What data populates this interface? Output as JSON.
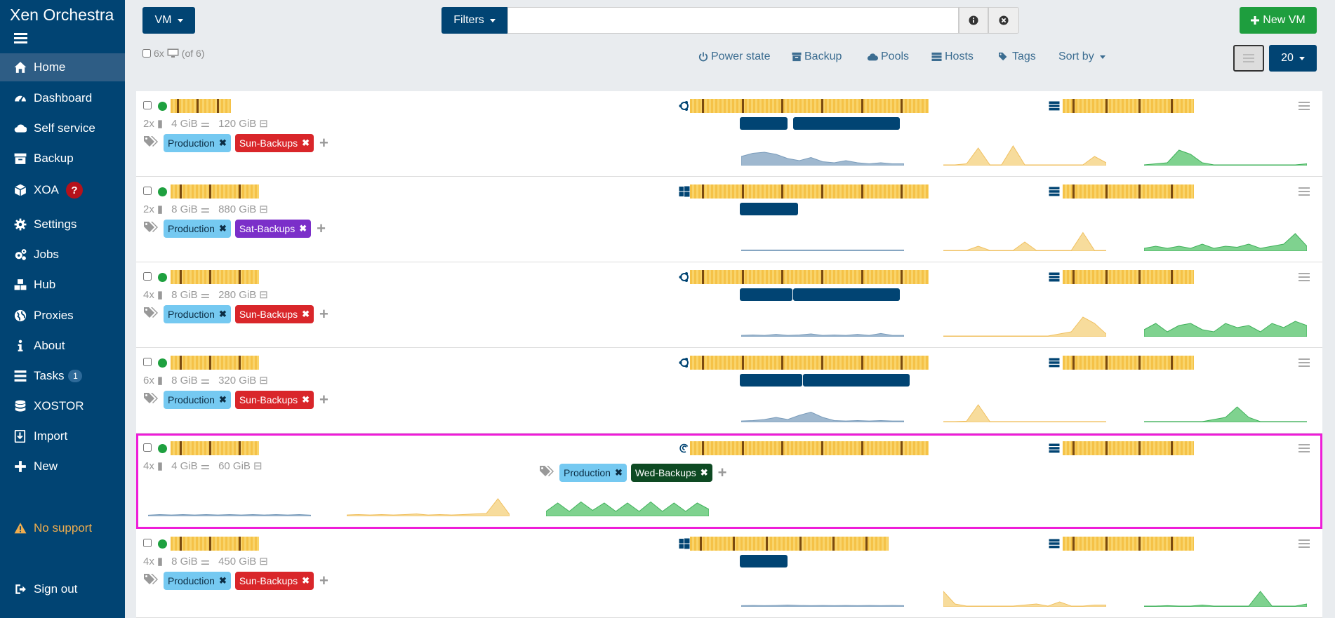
{
  "app": {
    "title": "Xen Orchestra"
  },
  "sidebar": {
    "items": [
      {
        "label": "Home",
        "icon": "home-icon",
        "active": true
      },
      {
        "label": "Dashboard",
        "icon": "dashboard-icon"
      },
      {
        "label": "Self service",
        "icon": "cloud-icon"
      },
      {
        "label": "Backup",
        "icon": "archive-icon"
      },
      {
        "label": "XOA",
        "icon": "cube-icon",
        "badge": "?"
      },
      {
        "label": "Settings",
        "icon": "gear-icon"
      },
      {
        "label": "Jobs",
        "icon": "gears-icon"
      },
      {
        "label": "Hub",
        "icon": "cubes-icon"
      },
      {
        "label": "Proxies",
        "icon": "globe-icon"
      },
      {
        "label": "About",
        "icon": "info-icon"
      },
      {
        "label": "Tasks",
        "icon": "tasks-icon",
        "count": "1"
      },
      {
        "label": "XOSTOR",
        "icon": "database-icon"
      },
      {
        "label": "Import",
        "icon": "import-icon"
      },
      {
        "label": "New",
        "icon": "plus-icon"
      }
    ],
    "no_support": "No support",
    "sign_out": "Sign out"
  },
  "toolbar": {
    "type_label": "VM",
    "filters_label": "Filters",
    "filter_value": "",
    "new_vm_label": "New VM",
    "select_count": "6x",
    "select_total": "(of 6)",
    "power_state": "Power state",
    "backup": "Backup",
    "pools": "Pools",
    "hosts": "Hosts",
    "tags": "Tags",
    "sort_by": "Sort by",
    "per_page": "20"
  },
  "colors": {
    "sidebar": "#014473",
    "accent": "#014473",
    "success": "#1e9e3e",
    "tag_production": "#75c9f1",
    "tag_sun": "#d9262a",
    "tag_sat": "#7b2fc9",
    "tag_wed": "#0e4a23",
    "selection": "#ee1dd8"
  },
  "vms": [
    {
      "cpus": "2x",
      "ram": "4 GiB",
      "disk": "120 GiB",
      "os": "ubuntu-icon",
      "tags": [
        {
          "label": "Production",
          "kind": "production"
        },
        {
          "label": "Sun-Backups",
          "kind": "sun"
        }
      ]
    },
    {
      "cpus": "2x",
      "ram": "8 GiB",
      "disk": "880 GiB",
      "os": "windows-icon",
      "tags": [
        {
          "label": "Production",
          "kind": "production"
        },
        {
          "label": "Sat-Backups",
          "kind": "sat"
        }
      ]
    },
    {
      "cpus": "4x",
      "ram": "8 GiB",
      "disk": "280 GiB",
      "os": "ubuntu-icon",
      "tags": [
        {
          "label": "Production",
          "kind": "production"
        },
        {
          "label": "Sun-Backups",
          "kind": "sun"
        }
      ]
    },
    {
      "cpus": "6x",
      "ram": "8 GiB",
      "disk": "320 GiB",
      "os": "ubuntu-icon",
      "tags": [
        {
          "label": "Production",
          "kind": "production"
        },
        {
          "label": "Sun-Backups",
          "kind": "sun"
        }
      ]
    },
    {
      "cpus": "4x",
      "ram": "4 GiB",
      "disk": "60 GiB",
      "os": "debian-icon",
      "selected": true,
      "tags": [
        {
          "label": "Production",
          "kind": "production"
        },
        {
          "label": "Wed-Backups",
          "kind": "wed"
        }
      ]
    },
    {
      "cpus": "4x",
      "ram": "8 GiB",
      "disk": "450 GiB",
      "os": "windows-icon",
      "tags": [
        {
          "label": "Production",
          "kind": "production"
        },
        {
          "label": "Sun-Backups",
          "kind": "sun"
        }
      ]
    }
  ]
}
